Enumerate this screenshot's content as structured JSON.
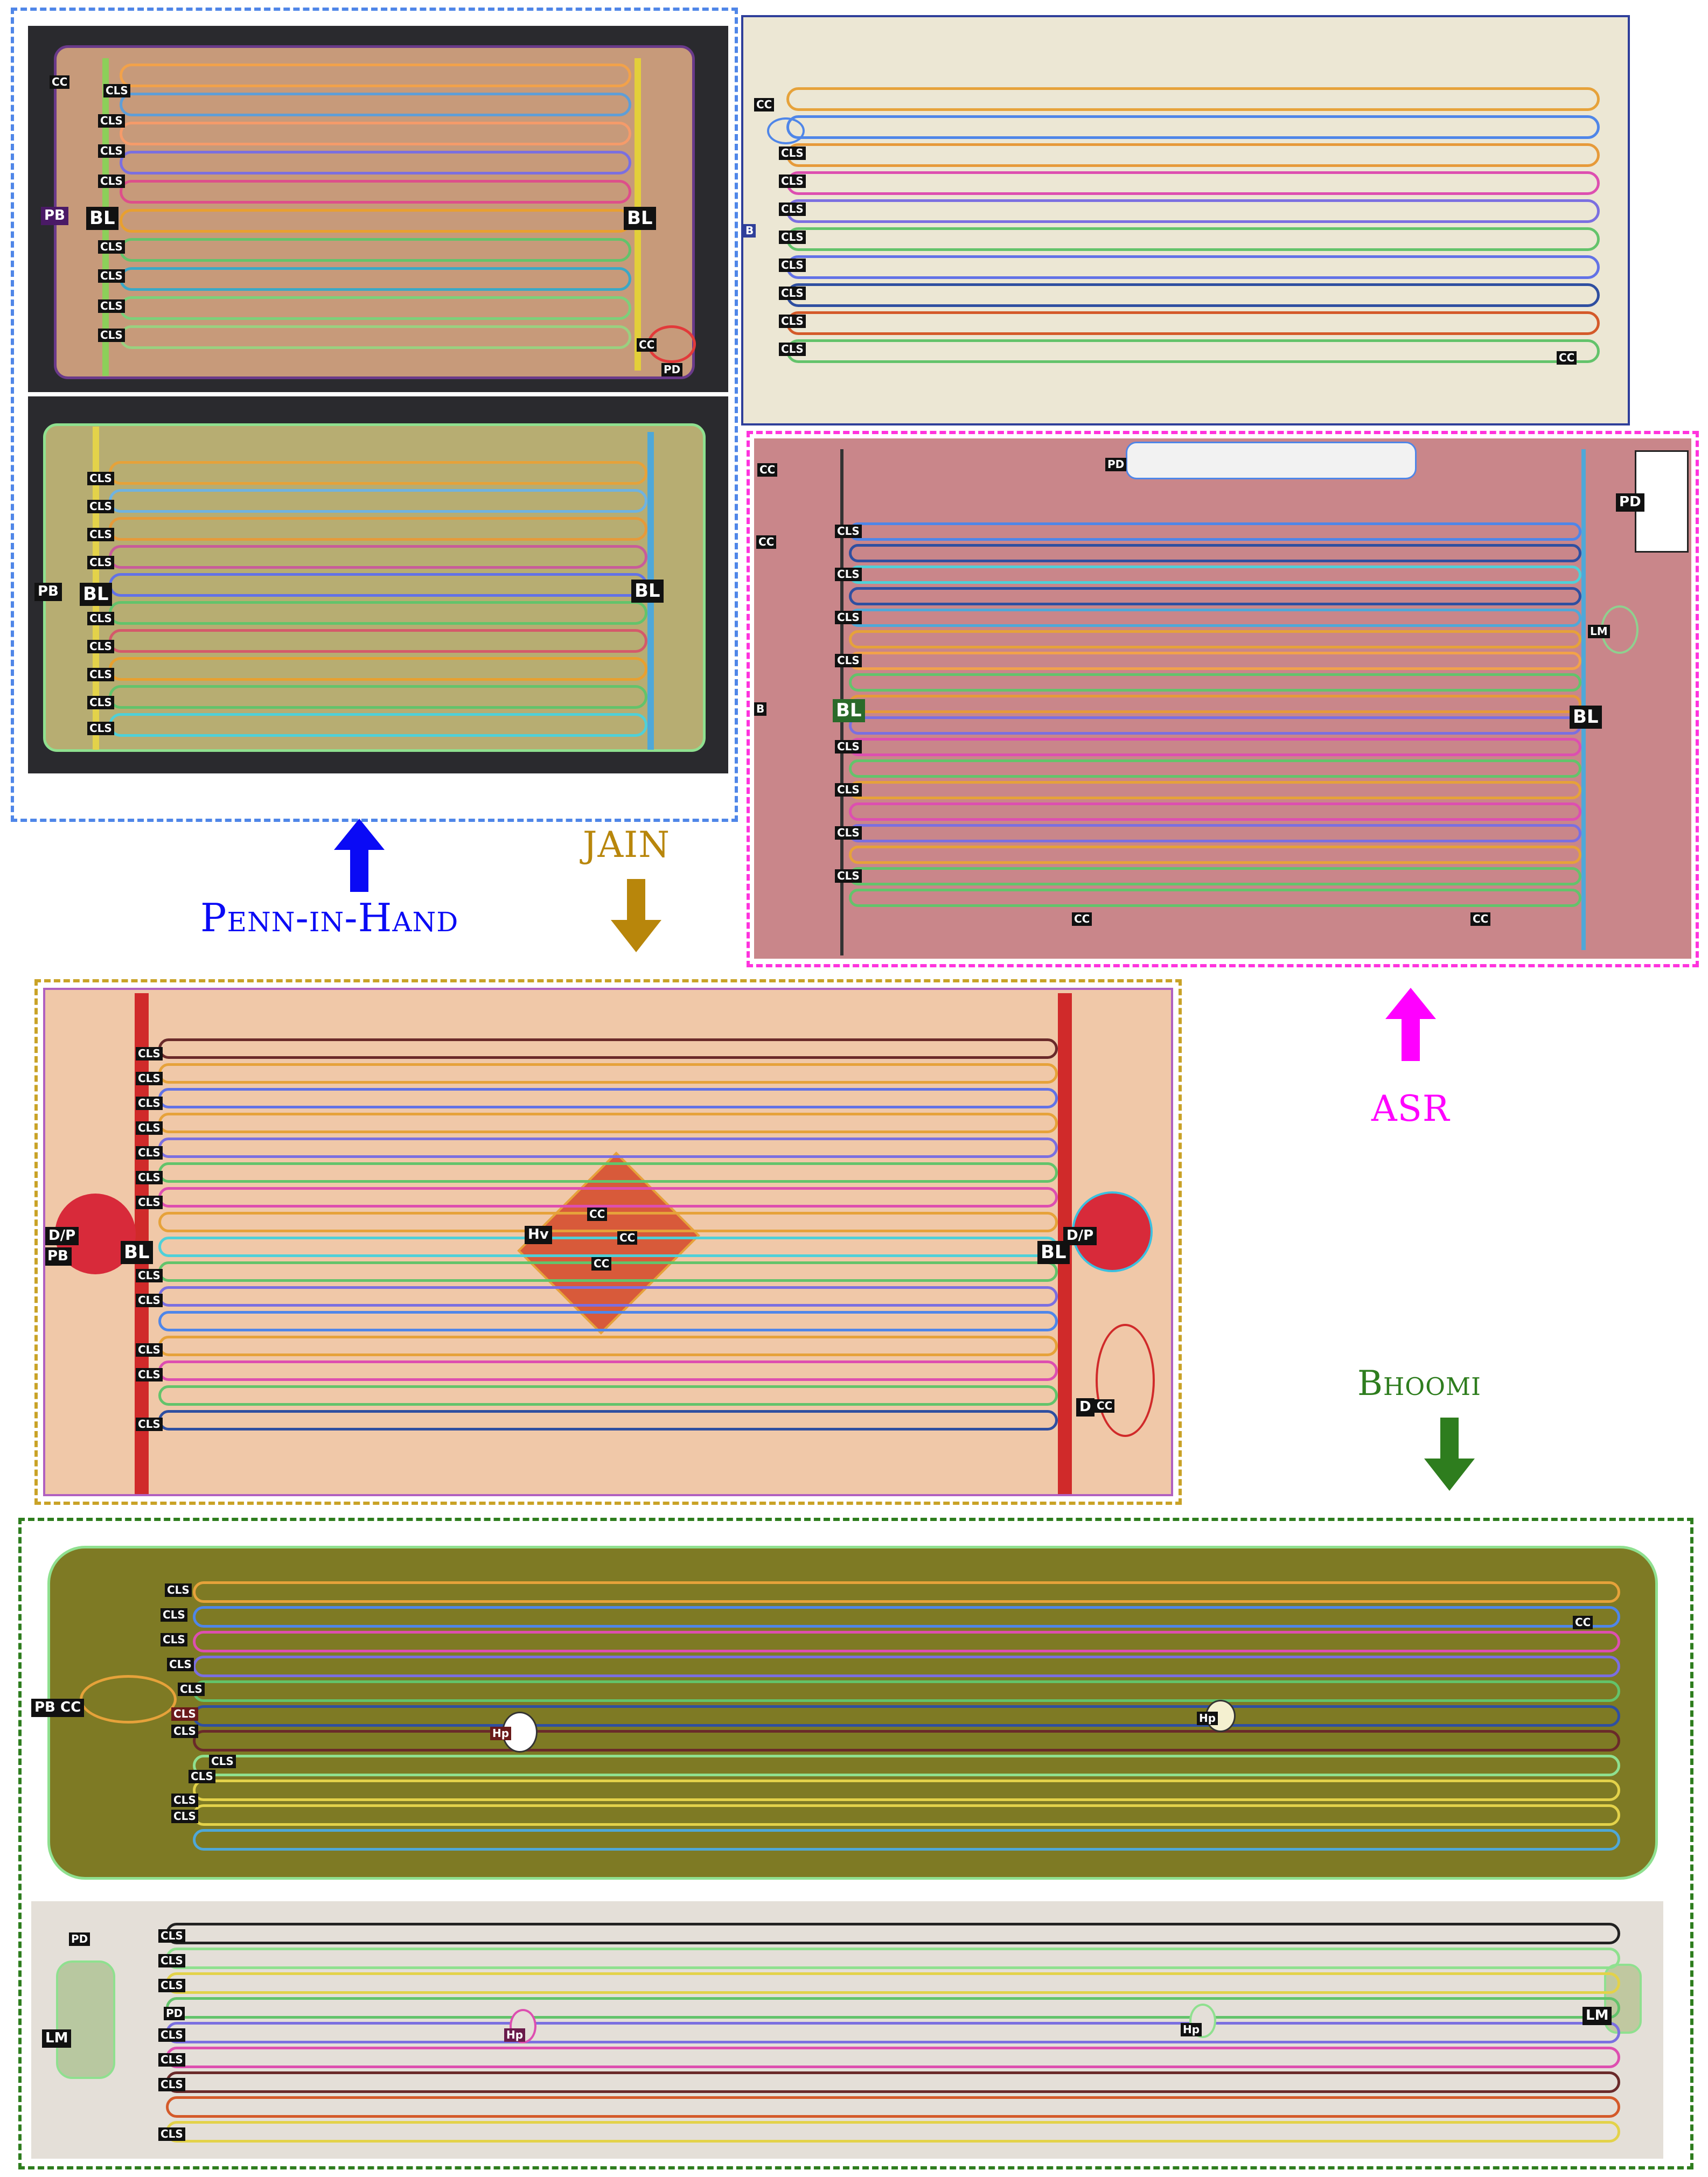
{
  "captions": {
    "penn": "Penn-in-Hand",
    "jain": "JAIN",
    "asr": "ASR",
    "bhoomi": "Bhoomi"
  },
  "colors": {
    "penn": "#0a0af5",
    "jain": "#b8860b",
    "asr": "#ff00ff",
    "bhoomi": "#2e7d1e",
    "group_penn_border": "#4f86e8",
    "group_asr_border": "#ff33dd",
    "group_jain_border": "#c9a227",
    "group_bhoomi_border": "#2e7d1e"
  },
  "icons": {
    "penn_arrow": "arrow-up-icon",
    "jain_arrow": "arrow-down-icon",
    "asr_arrow": "arrow-up-icon",
    "bhoomi_arrow": "arrow-down-icon"
  },
  "labels": {
    "PB": "PB",
    "BL": "BL",
    "CC": "CC",
    "CLS": "CLS",
    "PD": "PD",
    "B": "B",
    "LM": "LM",
    "Hv": "Hv",
    "DP": "D/P",
    "D": "D",
    "Hp": "Hp"
  }
}
